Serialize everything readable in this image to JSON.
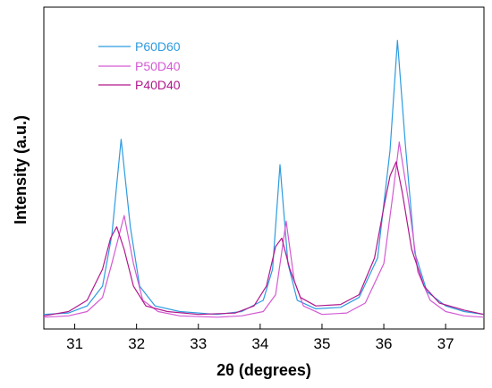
{
  "chart_data": {
    "type": "line",
    "xlabel": "2θ (degrees)",
    "ylabel": "Intensity (a.u.)",
    "xlim": [
      30.5,
      37.62
    ],
    "ylim": [
      0,
      1.0
    ],
    "xticks": [
      "31",
      "32",
      "33",
      "34",
      "35",
      "36",
      "37"
    ],
    "y_tick_labels": false,
    "legend_position": "top-left",
    "series": [
      {
        "name": "P60D60",
        "color": "#2E9BE0",
        "points": [
          [
            30.5,
            0.02
          ],
          [
            30.9,
            0.025
          ],
          [
            31.2,
            0.05
          ],
          [
            31.45,
            0.12
          ],
          [
            31.6,
            0.3
          ],
          [
            31.75,
            0.64
          ],
          [
            31.9,
            0.33
          ],
          [
            32.05,
            0.12
          ],
          [
            32.3,
            0.05
          ],
          [
            32.7,
            0.03
          ],
          [
            33.3,
            0.02
          ],
          [
            33.7,
            0.03
          ],
          [
            34.05,
            0.07
          ],
          [
            34.2,
            0.18
          ],
          [
            34.32,
            0.55
          ],
          [
            34.45,
            0.2
          ],
          [
            34.6,
            0.07
          ],
          [
            34.9,
            0.04
          ],
          [
            35.3,
            0.045
          ],
          [
            35.6,
            0.08
          ],
          [
            35.9,
            0.22
          ],
          [
            36.1,
            0.6
          ],
          [
            36.22,
            0.99
          ],
          [
            36.35,
            0.62
          ],
          [
            36.5,
            0.24
          ],
          [
            36.7,
            0.1
          ],
          [
            37.0,
            0.05
          ],
          [
            37.3,
            0.03
          ],
          [
            37.62,
            0.02
          ]
        ]
      },
      {
        "name": "P50D40",
        "color": "#D45AD4",
        "points": [
          [
            30.5,
            0.01
          ],
          [
            30.9,
            0.015
          ],
          [
            31.2,
            0.03
          ],
          [
            31.45,
            0.08
          ],
          [
            31.6,
            0.2
          ],
          [
            31.8,
            0.37
          ],
          [
            31.95,
            0.2
          ],
          [
            32.1,
            0.07
          ],
          [
            32.35,
            0.03
          ],
          [
            32.7,
            0.015
          ],
          [
            33.3,
            0.01
          ],
          [
            33.7,
            0.015
          ],
          [
            34.05,
            0.03
          ],
          [
            34.25,
            0.09
          ],
          [
            34.42,
            0.35
          ],
          [
            34.55,
            0.14
          ],
          [
            34.7,
            0.05
          ],
          [
            35.0,
            0.02
          ],
          [
            35.4,
            0.025
          ],
          [
            35.7,
            0.06
          ],
          [
            36.0,
            0.2
          ],
          [
            36.15,
            0.45
          ],
          [
            36.25,
            0.63
          ],
          [
            36.4,
            0.42
          ],
          [
            36.55,
            0.17
          ],
          [
            36.75,
            0.07
          ],
          [
            37.0,
            0.03
          ],
          [
            37.3,
            0.015
          ],
          [
            37.62,
            0.01
          ]
        ]
      },
      {
        "name": "P40D40",
        "color": "#B0188C",
        "points": [
          [
            30.5,
            0.015
          ],
          [
            30.9,
            0.03
          ],
          [
            31.2,
            0.07
          ],
          [
            31.45,
            0.18
          ],
          [
            31.58,
            0.29
          ],
          [
            31.68,
            0.33
          ],
          [
            31.8,
            0.25
          ],
          [
            31.95,
            0.12
          ],
          [
            32.15,
            0.05
          ],
          [
            32.5,
            0.03
          ],
          [
            33.0,
            0.02
          ],
          [
            33.6,
            0.025
          ],
          [
            33.9,
            0.05
          ],
          [
            34.1,
            0.12
          ],
          [
            34.25,
            0.26
          ],
          [
            34.35,
            0.29
          ],
          [
            34.48,
            0.18
          ],
          [
            34.65,
            0.08
          ],
          [
            34.9,
            0.05
          ],
          [
            35.3,
            0.055
          ],
          [
            35.6,
            0.09
          ],
          [
            35.85,
            0.22
          ],
          [
            36.0,
            0.4
          ],
          [
            36.1,
            0.51
          ],
          [
            36.2,
            0.56
          ],
          [
            36.3,
            0.45
          ],
          [
            36.45,
            0.25
          ],
          [
            36.65,
            0.12
          ],
          [
            36.9,
            0.06
          ],
          [
            37.3,
            0.035
          ],
          [
            37.62,
            0.02
          ]
        ]
      }
    ]
  }
}
